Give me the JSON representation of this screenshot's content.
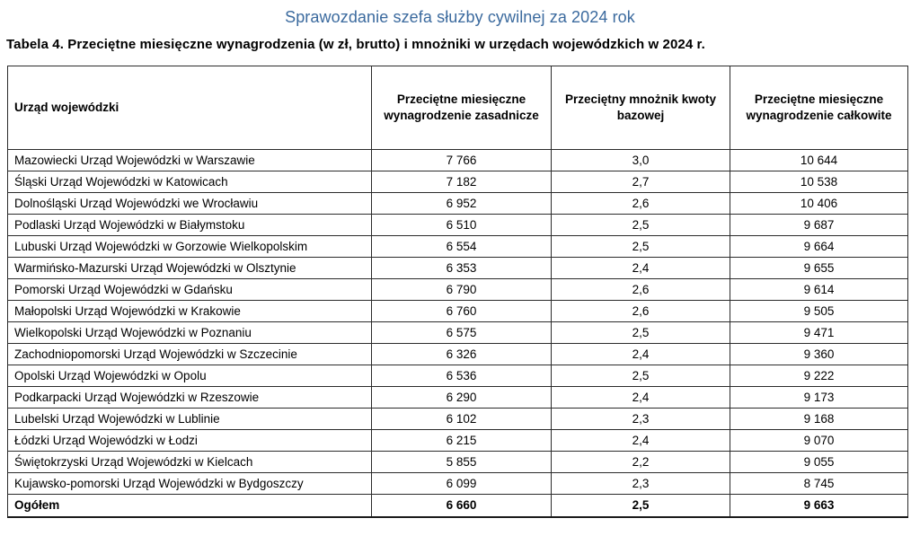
{
  "page": {
    "title": "Sprawozdanie szefa służby cywilnej za 2024 rok",
    "caption": "Tabela 4. Przeciętne miesięczne wynagrodzenia (w zł, brutto) i mnożniki w urzędach wojewódzkich w 2024 r."
  },
  "colors": {
    "title_text": "#3b6a9e",
    "table_border": "#2b2b2b",
    "body_text": "#000000"
  },
  "table": {
    "headers": [
      "Urząd wojewódzki",
      "Przeciętne miesięczne wynagrodzenie zasadnicze",
      "Przeciętny mnożnik kwoty bazowej",
      "Przeciętne miesięczne wynagrodzenie całkowite"
    ],
    "rows": [
      [
        "Mazowiecki Urząd Wojewódzki w Warszawie",
        "7 766",
        "3,0",
        "10 644"
      ],
      [
        "Śląski Urząd Wojewódzki w Katowicach",
        "7 182",
        "2,7",
        "10 538"
      ],
      [
        "Dolnośląski Urząd Wojewódzki we Wrocławiu",
        "6 952",
        "2,6",
        "10 406"
      ],
      [
        "Podlaski Urząd Wojewódzki w Białymstoku",
        "6 510",
        "2,5",
        "9 687"
      ],
      [
        "Lubuski Urząd Wojewódzki w Gorzowie Wielkopolskim",
        "6 554",
        "2,5",
        "9 664"
      ],
      [
        "Warmińsko-Mazurski Urząd Wojewódzki w Olsztynie",
        "6 353",
        "2,4",
        "9 655"
      ],
      [
        "Pomorski Urząd Wojewódzki w Gdańsku",
        "6 790",
        "2,6",
        "9 614"
      ],
      [
        "Małopolski Urząd Wojewódzki w Krakowie",
        "6 760",
        "2,6",
        "9 505"
      ],
      [
        "Wielkopolski Urząd Wojewódzki w Poznaniu",
        "6 575",
        "2,5",
        "9 471"
      ],
      [
        "Zachodniopomorski Urząd Wojewódzki w Szczecinie",
        "6 326",
        "2,4",
        "9 360"
      ],
      [
        "Opolski Urząd Wojewódzki w Opolu",
        "6 536",
        "2,5",
        "9 222"
      ],
      [
        "Podkarpacki Urząd Wojewódzki w Rzeszowie",
        "6 290",
        "2,4",
        "9 173"
      ],
      [
        "Lubelski Urząd Wojewódzki w Lublinie",
        "6 102",
        "2,3",
        "9 168"
      ],
      [
        "Łódzki Urząd Wojewódzki w Łodzi",
        "6 215",
        "2,4",
        "9 070"
      ],
      [
        "Świętokrzyski Urząd Wojewódzki w Kielcach",
        "5 855",
        "2,2",
        "9 055"
      ],
      [
        "Kujawsko-pomorski Urząd Wojewódzki w Bydgoszczy",
        "6 099",
        "2,3",
        "8 745"
      ]
    ],
    "total_row": [
      "Ogółem",
      "6 660",
      "2,5",
      "9 663"
    ]
  }
}
